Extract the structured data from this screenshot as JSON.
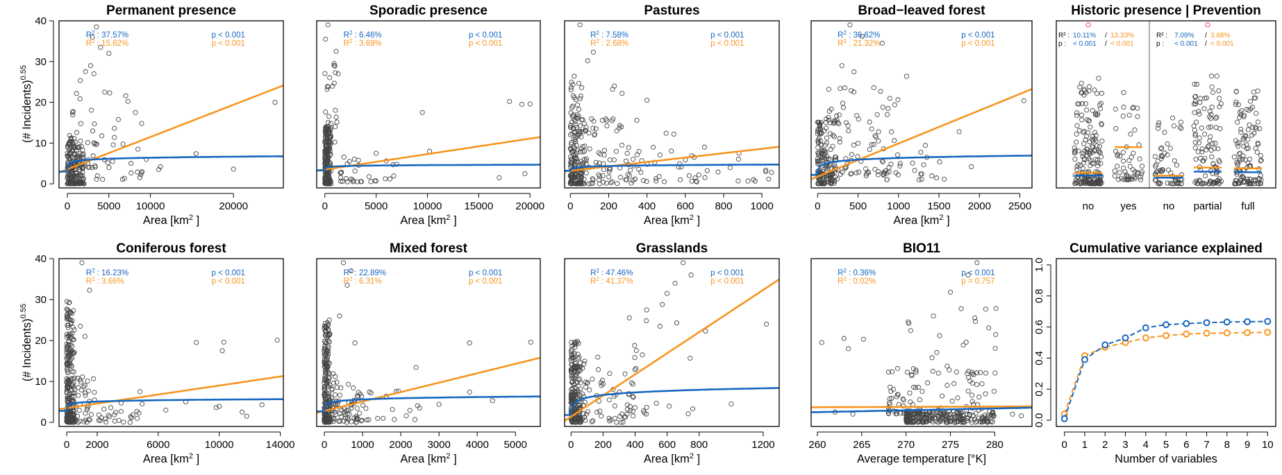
{
  "colors": {
    "blue": "#1565c0",
    "orange": "#f7941d",
    "points": "#444444",
    "outlier": "#e8628a"
  },
  "shared": {
    "ylabel_base": "(# Incidents)",
    "ylabel_exp": "0.55"
  },
  "chart_data": [
    {
      "id": "p1",
      "type": "scatter",
      "title": "Permanent presence",
      "xlabel": "Area [km",
      "xlabel_sup": "2",
      "xlabel_end": " ]",
      "xlim": [
        -1000,
        26000
      ],
      "ylim": [
        -1,
        40
      ],
      "xticks": [
        0,
        5000,
        10000,
        20000
      ],
      "yticks": [
        0,
        10,
        20,
        30,
        40
      ],
      "stats": {
        "blue_r2": "37.57%",
        "orange_r2": "15.82%",
        "blue_p": "p < 0.001",
        "orange_p": "p < 0.001"
      },
      "orange_line": {
        "kind": "linear",
        "a": 3.6,
        "b": 0.00079
      },
      "blue_line": {
        "kind": "log",
        "a": 3.0,
        "b": 0.37
      },
      "point_clusters": [
        {
          "x": [
            0,
            2000
          ],
          "y": [
            0,
            12
          ],
          "n": 180
        },
        {
          "x": [
            300,
            3500
          ],
          "y": [
            4,
            30
          ],
          "n": 40
        },
        {
          "x": [
            3500,
            9000
          ],
          "y": [
            1,
            22
          ],
          "n": 25
        }
      ],
      "points": [
        [
          3500,
          38.5
        ],
        [
          3000,
          36
        ],
        [
          4000,
          33.5
        ],
        [
          5000,
          32
        ],
        [
          2800,
          29
        ],
        [
          3200,
          27
        ],
        [
          8200,
          17.5
        ],
        [
          8500,
          8.5
        ],
        [
          9500,
          6
        ],
        [
          9000,
          3
        ],
        [
          11000,
          3.5
        ],
        [
          11200,
          4.2
        ],
        [
          15500,
          7.4
        ],
        [
          20000,
          3.6
        ],
        [
          25000,
          20
        ],
        [
          4500,
          22.5
        ],
        [
          5100,
          22.3
        ]
      ]
    },
    {
      "id": "p2",
      "type": "scatter",
      "title": "Sporadic presence",
      "xlabel": "Area [km",
      "xlabel_sup": "2",
      "xlabel_end": " ]",
      "xlim": [
        -800,
        21000
      ],
      "ylim": [
        -1,
        40
      ],
      "xticks": [
        0,
        5000,
        10000,
        15000,
        20000
      ],
      "yticks": [],
      "stats": {
        "blue_r2": "6.46%",
        "orange_r2": "3.69%",
        "blue_p": "p < 0.001",
        "orange_p": "p < 0.001"
      },
      "orange_line": {
        "kind": "linear",
        "a": 3.5,
        "b": 0.00038
      },
      "blue_line": {
        "kind": "log",
        "a": 3.3,
        "b": 0.14
      },
      "point_clusters": [
        {
          "x": [
            0,
            600
          ],
          "y": [
            0,
            14
          ],
          "n": 200
        },
        {
          "x": [
            0,
            1200
          ],
          "y": [
            10,
            38
          ],
          "n": 30
        },
        {
          "x": [
            1500,
            7000
          ],
          "y": [
            0.5,
            7
          ],
          "n": 30
        }
      ],
      "points": [
        [
          300,
          39
        ],
        [
          1100,
          32.5
        ],
        [
          900,
          29.5
        ],
        [
          1300,
          27
        ],
        [
          9500,
          17.5
        ],
        [
          10200,
          8
        ],
        [
          18000,
          20.2
        ],
        [
          19200,
          19.5
        ],
        [
          20000,
          19.6
        ],
        [
          17000,
          1.5
        ],
        [
          19500,
          2.5
        ],
        [
          5000,
          7.5
        ],
        [
          6000,
          5.6
        ],
        [
          7000,
          4.8
        ]
      ]
    },
    {
      "id": "p3",
      "type": "scatter",
      "title": "Pastures",
      "xlabel": "Area [km",
      "xlabel_sup": "2",
      "xlabel_end": " ]",
      "xlim": [
        -30,
        1090
      ],
      "ylim": [
        -1,
        40
      ],
      "xticks": [
        0,
        200,
        400,
        600,
        800,
        1000
      ],
      "yticks": [],
      "stats": {
        "blue_r2": "7.58%",
        "orange_r2": "2.68%",
        "blue_p": "p < 0.001",
        "orange_p": "p < 0.001"
      },
      "orange_line": {
        "kind": "linear",
        "a": 3.2,
        "b": 0.0054
      },
      "blue_line": {
        "kind": "log",
        "a": 3.2,
        "b": 0.22
      },
      "point_clusters": [
        {
          "x": [
            0,
            60
          ],
          "y": [
            0,
            25
          ],
          "n": 150
        },
        {
          "x": [
            50,
            350
          ],
          "y": [
            0,
            16
          ],
          "n": 100
        },
        {
          "x": [
            300,
            1050
          ],
          "y": [
            0.5,
            9
          ],
          "n": 45
        }
      ],
      "points": [
        [
          50,
          39
        ],
        [
          120,
          32.3
        ],
        [
          90,
          30.2
        ],
        [
          20,
          26.4
        ],
        [
          230,
          24
        ],
        [
          220,
          23.2
        ],
        [
          400,
          20.5
        ],
        [
          270,
          22.2
        ],
        [
          500,
          12.4
        ],
        [
          540,
          12.2
        ],
        [
          700,
          9
        ],
        [
          880,
          7.5
        ],
        [
          1020,
          3
        ],
        [
          1050,
          2.8
        ]
      ]
    },
    {
      "id": "p4",
      "type": "scatter",
      "title": "Broad−leaved forest",
      "xlabel": "Area [km",
      "xlabel_sup": "2",
      "xlabel_end": " ]",
      "xlim": [
        -80,
        2650
      ],
      "ylim": [
        -1,
        40
      ],
      "xticks": [
        0,
        500,
        1000,
        1500,
        2000,
        2500
      ],
      "yticks": [],
      "stats": {
        "blue_r2": "36.62%",
        "orange_r2": "21.32%",
        "blue_p": "p < 0.001",
        "orange_p": "p < 0.001"
      },
      "orange_line": {
        "kind": "linear",
        "a": 1.8,
        "b": 0.0081
      },
      "blue_line": {
        "kind": "log",
        "a": 2.2,
        "b": 0.6
      },
      "point_clusters": [
        {
          "x": [
            0,
            250
          ],
          "y": [
            0,
            16
          ],
          "n": 150
        },
        {
          "x": [
            100,
            1000
          ],
          "y": [
            2,
            25
          ],
          "n": 90
        },
        {
          "x": [
            800,
            1600
          ],
          "y": [
            1,
            12
          ],
          "n": 25
        }
      ],
      "points": [
        [
          400,
          39
        ],
        [
          550,
          36.2
        ],
        [
          800,
          34.5
        ],
        [
          300,
          29
        ],
        [
          1100,
          26.4
        ],
        [
          450,
          27.5
        ],
        [
          1750,
          12.8
        ],
        [
          2550,
          20.4
        ],
        [
          1900,
          4.2
        ],
        [
          1200,
          3.3
        ],
        [
          1350,
          6.5
        ]
      ]
    },
    {
      "id": "p5",
      "type": "strip",
      "title": "Historic presence | Prevention",
      "categories": [
        "no",
        "yes",
        "no",
        "partial",
        "full"
      ],
      "ylim": [
        -1,
        40
      ],
      "medians": [
        2.7,
        9.0,
        2.0,
        4.0,
        3.8
      ],
      "ranges": [
        [
          0,
          26
        ],
        [
          1,
          23
        ],
        [
          0,
          17
        ],
        [
          0,
          28
        ],
        [
          0,
          23
        ]
      ],
      "counts": [
        190,
        55,
        60,
        110,
        120
      ],
      "outliers": [
        [
          0,
          39
        ],
        [
          3,
          39
        ]
      ],
      "stats_left": {
        "r2_label": "R² :",
        "r2_blue": "10.11%",
        "r2_orange": "13.33%",
        "p_label": "p :",
        "p_blue": "< 0.001",
        "p_orange": "< 0.001"
      },
      "stats_right": {
        "r2_label": "R² :",
        "r2_blue": "7.09%",
        "r2_orange": "3.68%",
        "p_label": "p :",
        "p_blue": "< 0.001",
        "p_orange": "< 0.001"
      }
    },
    {
      "id": "p6",
      "type": "scatter",
      "title": "Coniferous forest",
      "xlabel": "Area [km",
      "xlabel_sup": "2",
      "xlabel_end": " ]",
      "xlim": [
        -500,
        14200
      ],
      "ylim": [
        -1,
        40
      ],
      "xticks": [
        0,
        2000,
        6000,
        10000,
        14000
      ],
      "yticks": [
        0,
        10,
        20,
        30,
        40
      ],
      "stats": {
        "blue_r2": "16.23%",
        "orange_r2": "3.66%",
        "blue_p": "p < 0.001",
        "orange_p": "p < 0.001"
      },
      "orange_line": {
        "kind": "linear",
        "a": 3.5,
        "b": 0.00055
      },
      "blue_line": {
        "kind": "log",
        "a": 2.8,
        "b": 0.3
      },
      "point_clusters": [
        {
          "x": [
            0,
            500
          ],
          "y": [
            0,
            30
          ],
          "n": 220
        },
        {
          "x": [
            400,
            2000
          ],
          "y": [
            0,
            12
          ],
          "n": 50
        },
        {
          "x": [
            2000,
            5000
          ],
          "y": [
            0,
            5
          ],
          "n": 25
        }
      ],
      "points": [
        [
          1000,
          39
        ],
        [
          1500,
          32.3
        ],
        [
          900,
          23.5
        ],
        [
          1200,
          21
        ],
        [
          4800,
          7.5
        ],
        [
          6500,
          3
        ],
        [
          7800,
          5
        ],
        [
          8500,
          19.5
        ],
        [
          9800,
          3.6
        ],
        [
          10000,
          3.9
        ],
        [
          10200,
          17.5
        ],
        [
          10300,
          19.6
        ],
        [
          11500,
          2.5
        ],
        [
          11800,
          1.5
        ],
        [
          12800,
          4.3
        ],
        [
          13800,
          20.1
        ]
      ]
    },
    {
      "id": "p7",
      "type": "scatter",
      "title": "Mixed forest",
      "xlabel": "Area [km",
      "xlabel_sup": "2",
      "xlabel_end": " ]",
      "xlim": [
        -200,
        5650
      ],
      "ylim": [
        -1,
        40
      ],
      "xticks": [
        0,
        1000,
        2000,
        3000,
        4000,
        5000
      ],
      "yticks": [],
      "stats": {
        "blue_r2": "22.89%",
        "orange_r2": "6.31%",
        "blue_p": "p < 0.001",
        "orange_p": "p < 0.001"
      },
      "orange_line": {
        "kind": "linear",
        "a": 2.8,
        "b": 0.0023
      },
      "blue_line": {
        "kind": "log",
        "a": 2.7,
        "b": 0.42
      },
      "point_clusters": [
        {
          "x": [
            0,
            150
          ],
          "y": [
            0,
            25
          ],
          "n": 200
        },
        {
          "x": [
            100,
            1000
          ],
          "y": [
            0,
            12
          ],
          "n": 80
        },
        {
          "x": [
            800,
            2500
          ],
          "y": [
            0.5,
            8
          ],
          "n": 25
        }
      ],
      "points": [
        [
          500,
          39
        ],
        [
          700,
          37
        ],
        [
          600,
          33.5
        ],
        [
          400,
          26
        ],
        [
          800,
          19.4
        ],
        [
          2400,
          13.4
        ],
        [
          3800,
          19.4
        ],
        [
          5400,
          19.6
        ],
        [
          3800,
          7.4
        ],
        [
          4400,
          5.3
        ],
        [
          3000,
          4.4
        ]
      ]
    },
    {
      "id": "p8",
      "type": "scatter",
      "title": "Grasslands",
      "xlabel": "Area [km",
      "xlabel_sup": "2",
      "xlabel_end": " ]",
      "xlim": [
        -40,
        1300
      ],
      "ylim": [
        -1,
        40
      ],
      "xticks": [
        0,
        200,
        400,
        600,
        800,
        1200
      ],
      "yticks": [],
      "stats": {
        "blue_r2": "47.46%",
        "orange_r2": "41.37%",
        "blue_p": "p < 0.001",
        "orange_p": "p < 0.001"
      },
      "orange_line": {
        "kind": "linear",
        "a": 1.4,
        "b": 0.0258
      },
      "blue_line": {
        "kind": "log",
        "a": 1.8,
        "b": 0.92
      },
      "point_clusters": [
        {
          "x": [
            0,
            60
          ],
          "y": [
            0,
            20
          ],
          "n": 200
        },
        {
          "x": [
            50,
            400
          ],
          "y": [
            0,
            16
          ],
          "n": 70
        },
        {
          "x": [
            350,
            800
          ],
          "y": [
            2,
            28
          ],
          "n": 25
        }
      ],
      "points": [
        [
          700,
          39
        ],
        [
          750,
          36
        ],
        [
          650,
          34
        ],
        [
          600,
          31.5
        ],
        [
          570,
          28.8
        ],
        [
          660,
          24.3
        ],
        [
          840,
          22.3
        ],
        [
          1220,
          24
        ],
        [
          760,
          3.3
        ],
        [
          1000,
          4.5
        ]
      ]
    },
    {
      "id": "p9",
      "type": "scatter",
      "title": "BIO11",
      "xlabel": "Average temperature [°K]",
      "xlabel_sup": "",
      "xlabel_end": "",
      "xlim": [
        259.3,
        284.2
      ],
      "ylim": [
        -1,
        40
      ],
      "xticks": [
        260,
        265,
        270,
        275,
        280
      ],
      "yticks": [],
      "stats": {
        "blue_r2": "0.36%",
        "orange_r2": "0.02%",
        "blue_p": "p < 0.001",
        "orange_p": "p = 0.757"
      },
      "orange_line": {
        "kind": "linear",
        "a": 3.7,
        "b": 0.008,
        "x0": 260
      },
      "blue_line": {
        "kind": "linear",
        "a": 2.5,
        "b": 0.045,
        "x0": 260
      },
      "point_clusters": [
        {
          "x": [
            270,
            280
          ],
          "y": [
            0,
            3
          ],
          "n": 230
        },
        {
          "x": [
            268,
            280
          ],
          "y": [
            2,
            14
          ],
          "n": 90
        },
        {
          "x": [
            270,
            281
          ],
          "y": [
            12,
            28
          ],
          "n": 30
        }
      ],
      "points": [
        [
          278,
          39
        ],
        [
          277,
          36
        ],
        [
          275,
          31.8
        ],
        [
          260.5,
          19.5
        ],
        [
          263,
          20.5
        ],
        [
          265.2,
          20.3
        ],
        [
          263.5,
          18
        ],
        [
          262,
          2.5
        ],
        [
          264,
          2
        ],
        [
          282,
          2
        ],
        [
          283,
          1.6
        ]
      ]
    },
    {
      "id": "p10",
      "type": "line",
      "title": "Cumulative variance explained",
      "xlabel": "Number of variables",
      "xlim": [
        -0.4,
        10.4
      ],
      "ylim": [
        -0.04,
        1.04
      ],
      "xticks": [
        0,
        1,
        2,
        3,
        4,
        5,
        6,
        7,
        8,
        9,
        10
      ],
      "yticks": [
        0.0,
        0.2,
        0.4,
        0.6,
        0.8,
        1.0
      ],
      "x": [
        0,
        1,
        2,
        3,
        4,
        5,
        6,
        7,
        8,
        9,
        10
      ],
      "series": [
        {
          "color": "blue",
          "values": [
            0.01,
            0.39,
            0.485,
            0.53,
            0.595,
            0.615,
            0.622,
            0.628,
            0.632,
            0.634,
            0.636
          ]
        },
        {
          "color": "orange",
          "values": [
            0.04,
            0.415,
            0.47,
            0.5,
            0.53,
            0.545,
            0.555,
            0.56,
            0.562,
            0.564,
            0.566
          ]
        }
      ]
    }
  ]
}
